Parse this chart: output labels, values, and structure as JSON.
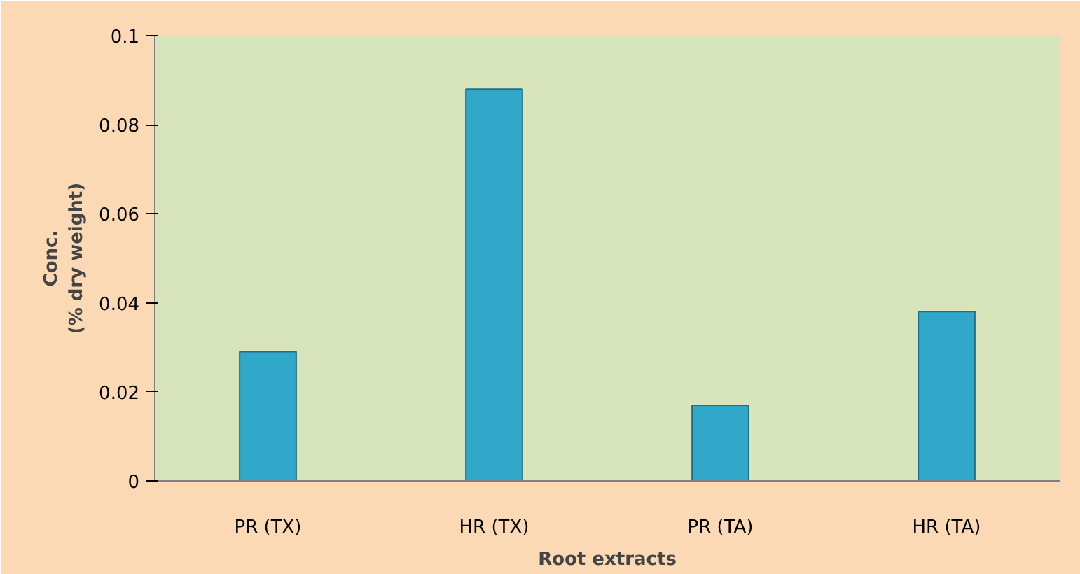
{
  "chart_data": {
    "type": "bar",
    "xlabel": "Root extracts",
    "ylabel": "Conc.\n(% dry weight)",
    "categories": [
      "PR (TX)",
      "HR (TX)",
      "PR (TA)",
      "HR (TA)"
    ],
    "values": [
      0.029,
      0.088,
      0.017,
      0.038
    ],
    "color": "#31a7c9",
    "ylim": [
      0,
      0.1
    ],
    "yticks": [
      0,
      0.02,
      0.04,
      0.06,
      0.08,
      0.1
    ],
    "grid": false
  }
}
